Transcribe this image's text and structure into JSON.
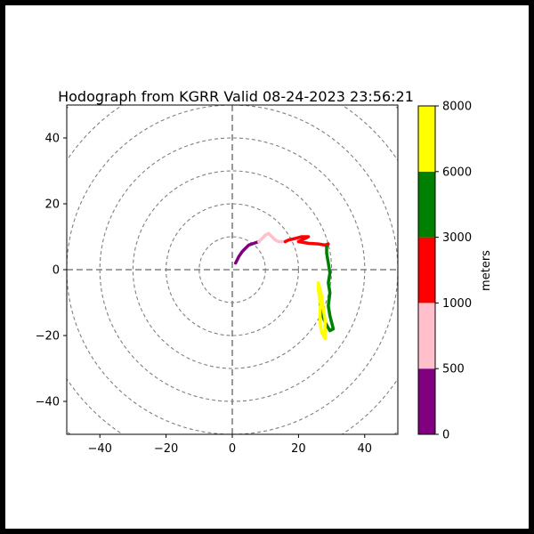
{
  "chart_data": {
    "type": "line",
    "title": "Hodograph from KGRR Valid 08-24-2023 23:56:21",
    "xlim": [
      -50,
      50
    ],
    "ylim": [
      -50,
      50
    ],
    "x_ticks": [
      "−40",
      "−20",
      "0",
      "20",
      "40"
    ],
    "y_ticks": [
      "40",
      "20",
      "0",
      "−20",
      "−40"
    ],
    "x_tick_values": [
      -40,
      -20,
      0,
      20,
      40
    ],
    "y_tick_values": [
      40,
      20,
      0,
      -20,
      -40
    ],
    "range_rings": [
      10,
      20,
      30,
      40,
      50,
      60,
      70
    ],
    "colorbar": {
      "label": "meters",
      "levels": [
        "0",
        "500",
        "1000",
        "3000",
        "6000",
        "8000"
      ],
      "colors": [
        "#800080",
        "#ffc0cb",
        "#ff0000",
        "#008000",
        "#ffff00"
      ]
    },
    "series": [
      {
        "color": "#800080",
        "points": [
          [
            1,
            2
          ],
          [
            2,
            4
          ],
          [
            3,
            5.5
          ],
          [
            4,
            6.5
          ],
          [
            5,
            7.5
          ],
          [
            6.5,
            8
          ],
          [
            8,
            8.5
          ]
        ]
      },
      {
        "color": "#ffc0cb",
        "points": [
          [
            8,
            8.5
          ],
          [
            9,
            9.5
          ],
          [
            10,
            10.5
          ],
          [
            11,
            11
          ],
          [
            12,
            10
          ],
          [
            13,
            9
          ],
          [
            14,
            8.5
          ],
          [
            16,
            8.5
          ]
        ]
      },
      {
        "color": "#ff0000",
        "points": [
          [
            16,
            8.5
          ],
          [
            17,
            9
          ],
          [
            19,
            9.5
          ],
          [
            21,
            10
          ],
          [
            23,
            10
          ],
          [
            21,
            9
          ],
          [
            20,
            8.5
          ],
          [
            23,
            8
          ],
          [
            26,
            7.8
          ],
          [
            28,
            7.5
          ],
          [
            29,
            7.8
          ],
          [
            28.5,
            7
          ]
        ]
      },
      {
        "color": "#008000",
        "points": [
          [
            28.5,
            7
          ],
          [
            28.5,
            5
          ],
          [
            29,
            2
          ],
          [
            29.5,
            -1
          ],
          [
            29,
            -4
          ],
          [
            29.5,
            -7
          ],
          [
            29,
            -11
          ],
          [
            29.5,
            -14
          ],
          [
            30,
            -16
          ],
          [
            30.5,
            -18
          ],
          [
            29.5,
            -18.5
          ],
          [
            28,
            -16
          ],
          [
            27,
            -13
          ],
          [
            26.5,
            -10
          ]
        ]
      },
      {
        "color": "#ffff00",
        "points": [
          [
            26.5,
            -10
          ],
          [
            26,
            -6
          ],
          [
            26,
            -4
          ],
          [
            27,
            -8
          ],
          [
            27.5,
            -12
          ],
          [
            28,
            -15
          ],
          [
            28,
            -18
          ],
          [
            28,
            -21
          ],
          [
            27,
            -19
          ],
          [
            26.5,
            -16
          ],
          [
            26.5,
            -12
          ],
          [
            27,
            -9
          ]
        ]
      }
    ]
  }
}
